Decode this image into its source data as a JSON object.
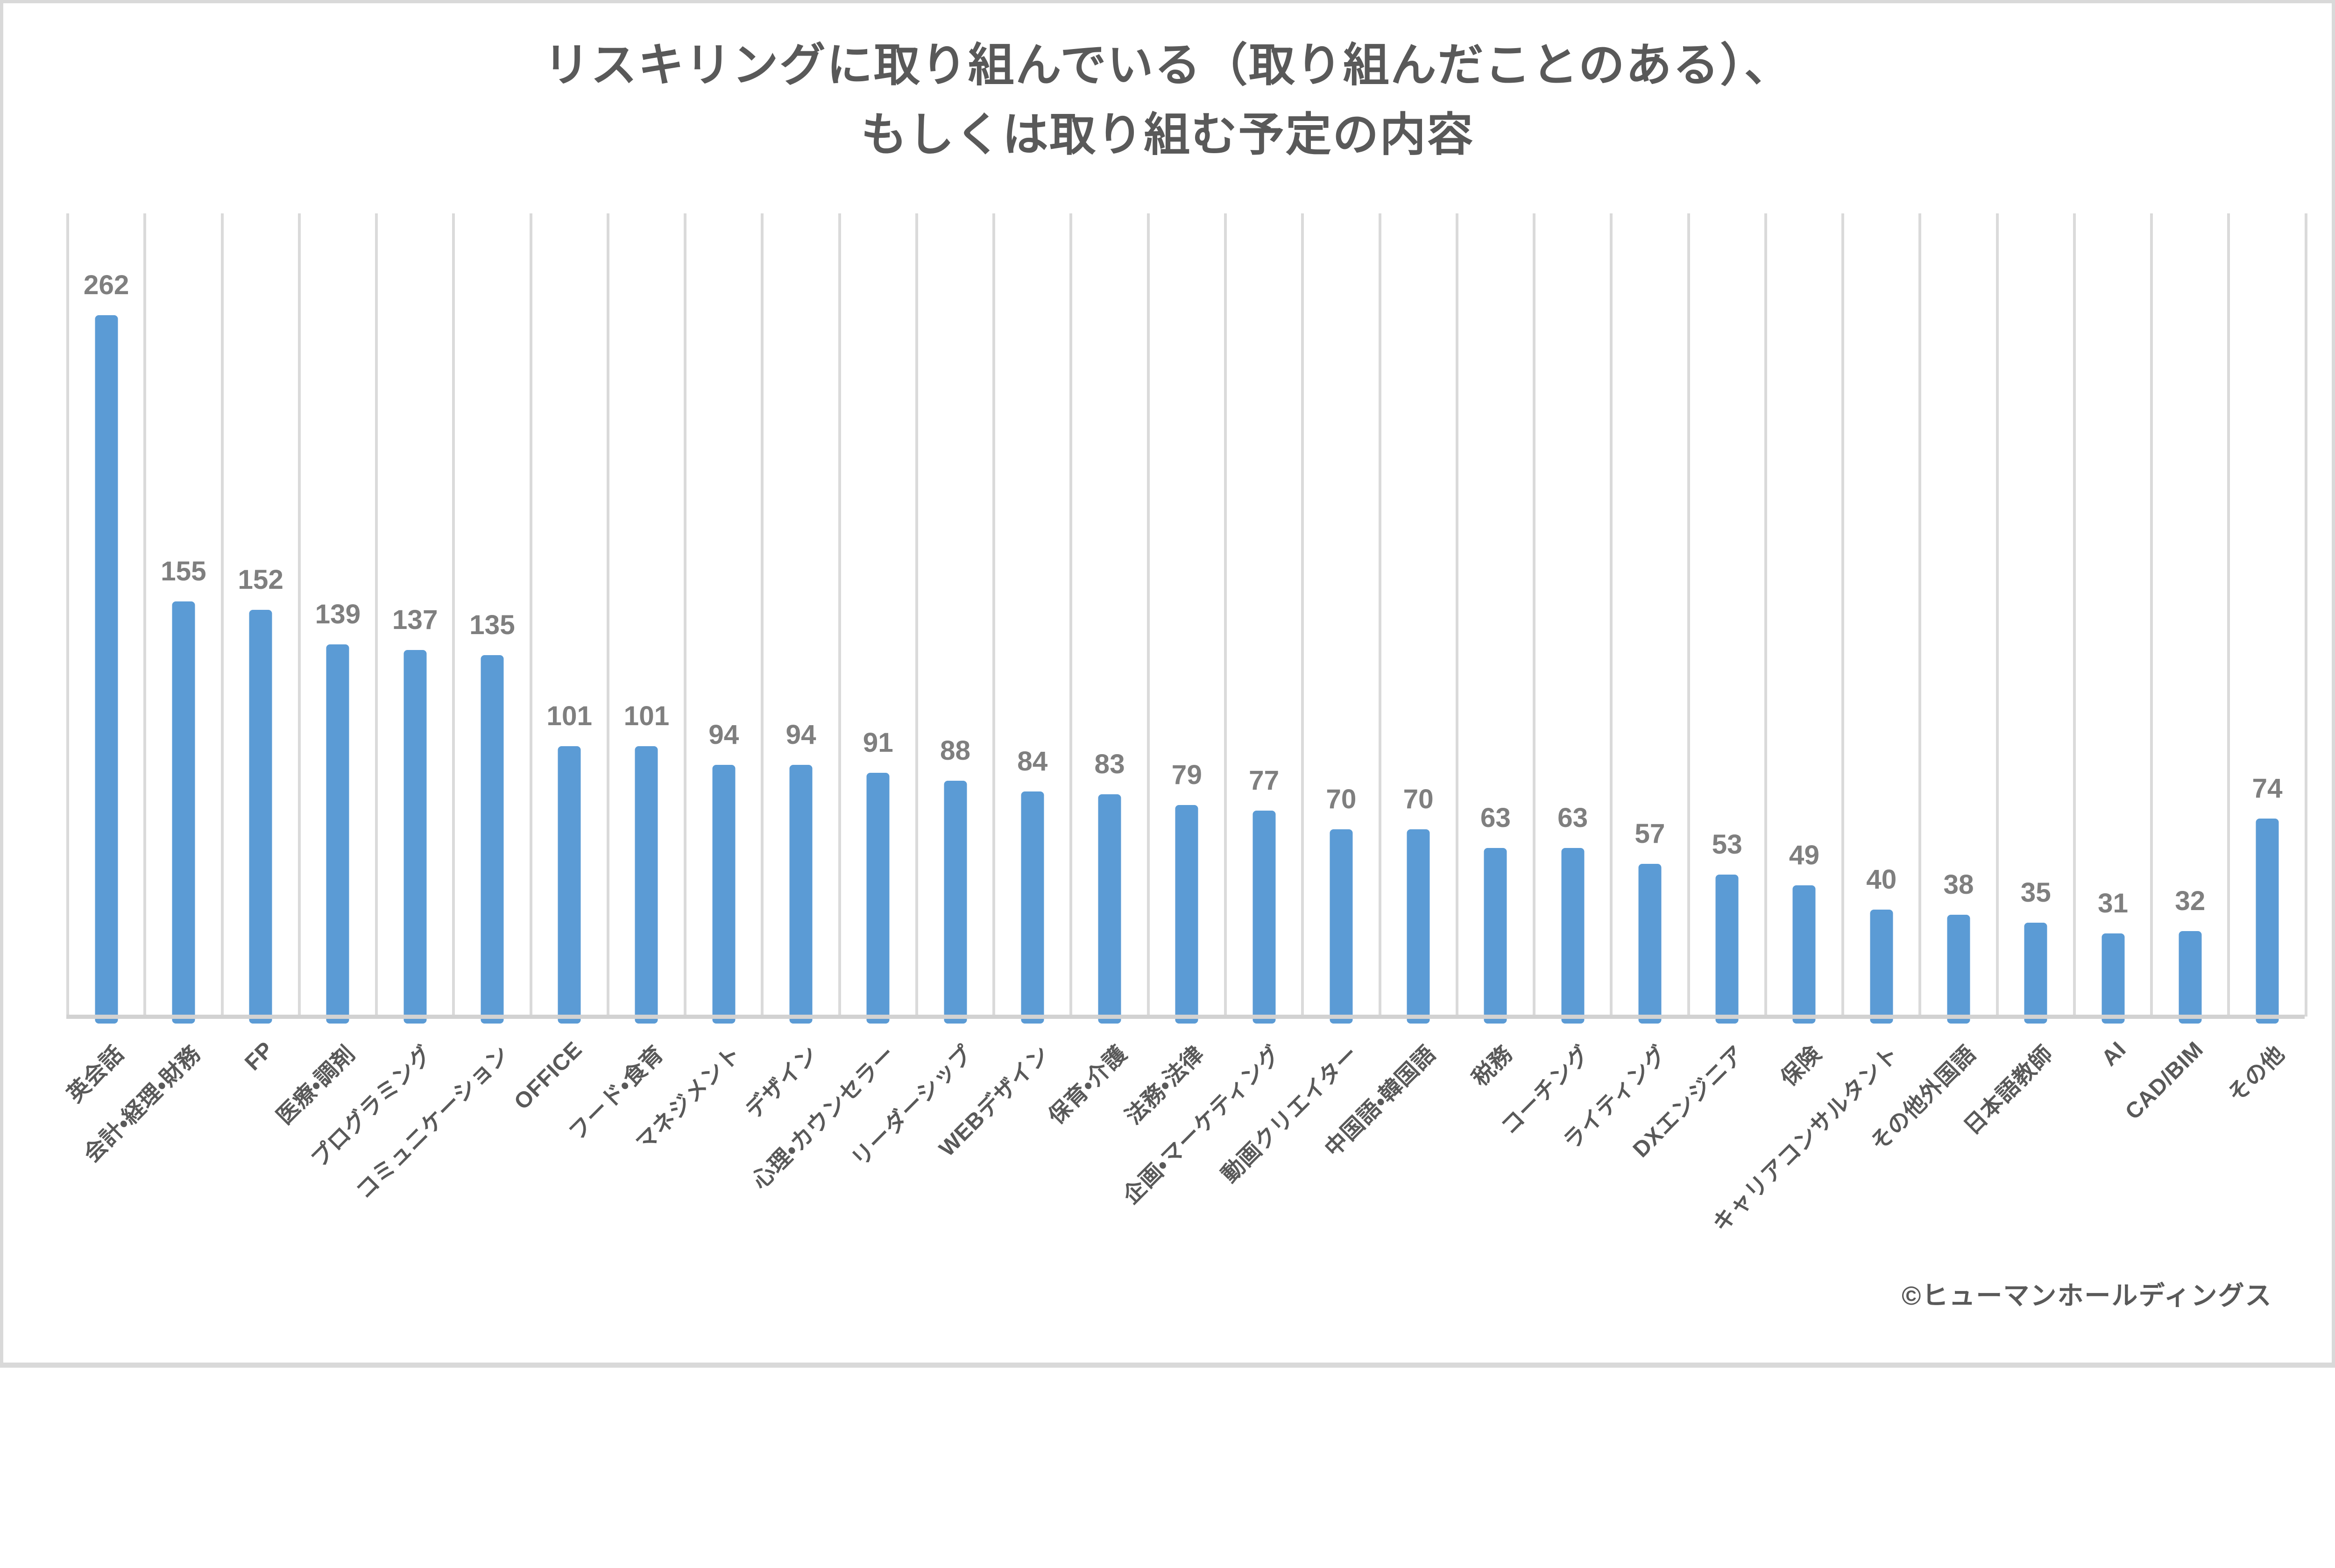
{
  "title": {
    "line1": "リスキリングに取り組んでいる（取り組んだことのある）、",
    "line2": "もしくは取り組む予定の内容"
  },
  "footer": {
    "credit": "©ヒューマンホールディングス"
  },
  "chart_data": {
    "type": "bar",
    "title": "リスキリングに取り組んでいる（取り組んだことのある）、もしくは取り組む予定の内容",
    "categories": [
      "英会話",
      "会計・経理・財務",
      "FP",
      "医療・調剤",
      "プログラミング",
      "コミュニケーション",
      "OFFICE",
      "フード・食育",
      "マネジメント",
      "デザイン",
      "心理・カウンセラー",
      "リーダーシップ",
      "WEBデザイン",
      "保育・介護",
      "法務・法律",
      "企画・マーケティング",
      "動画クリエイター",
      "中国語・韓国語",
      "税務",
      "コーチング",
      "ライティング",
      "DXエンジニア",
      "保険",
      "キャリアコンサルタント",
      "その他外国語",
      "日本語教師",
      "AI",
      "CAD/BIM",
      "その他"
    ],
    "values": [
      262,
      155,
      152,
      139,
      137,
      135,
      101,
      101,
      94,
      94,
      91,
      88,
      84,
      83,
      79,
      77,
      70,
      70,
      63,
      63,
      57,
      53,
      49,
      40,
      38,
      35,
      31,
      32,
      74
    ],
    "xlabel": "",
    "ylabel": "",
    "ylim": [
      0,
      300
    ],
    "y_axis_visible": false,
    "grid": "vertical-only",
    "value_labels": "above-bars",
    "category_label_rotation_deg": 45,
    "legend": "none",
    "colors": {
      "bar": "#5B9BD5",
      "gridline": "#DADADA",
      "axis_line": "#D2D2D2",
      "value_label": "#7F7F7F",
      "text": "#595959",
      "frame_border": "#D9D9D9",
      "background": "#FFFFFF"
    }
  }
}
